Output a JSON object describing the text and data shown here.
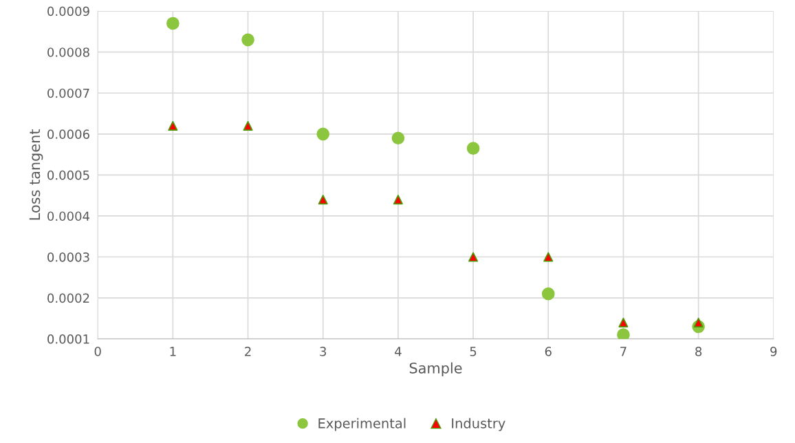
{
  "chart_data": {
    "type": "scatter",
    "xlabel": "Sample",
    "ylabel": "Loss tangent",
    "x": [
      1,
      2,
      3,
      4,
      5,
      6,
      7,
      8
    ],
    "series": [
      {
        "name": "Experimental",
        "color": "#8cc63e",
        "marker": "circle",
        "values": [
          0.00087,
          0.00083,
          0.0006,
          0.00059,
          0.000565,
          0.00021,
          0.00011,
          0.00013
        ]
      },
      {
        "name": "Industry",
        "color": "#ff0000",
        "marker": "triangle",
        "values": [
          0.00062,
          0.00062,
          0.00044,
          0.00044,
          0.0003,
          0.0003,
          0.00014,
          0.00014
        ]
      }
    ],
    "xlim": [
      0,
      9
    ],
    "xticks": [
      0,
      1,
      2,
      3,
      4,
      5,
      6,
      7,
      8,
      9
    ],
    "ylim": [
      0.0001,
      0.0009
    ],
    "yticks": [
      0.0001,
      0.0002,
      0.0003,
      0.0004,
      0.0005,
      0.0006,
      0.0007,
      0.0008,
      0.0009
    ],
    "grid": true,
    "legend": "bottom"
  }
}
